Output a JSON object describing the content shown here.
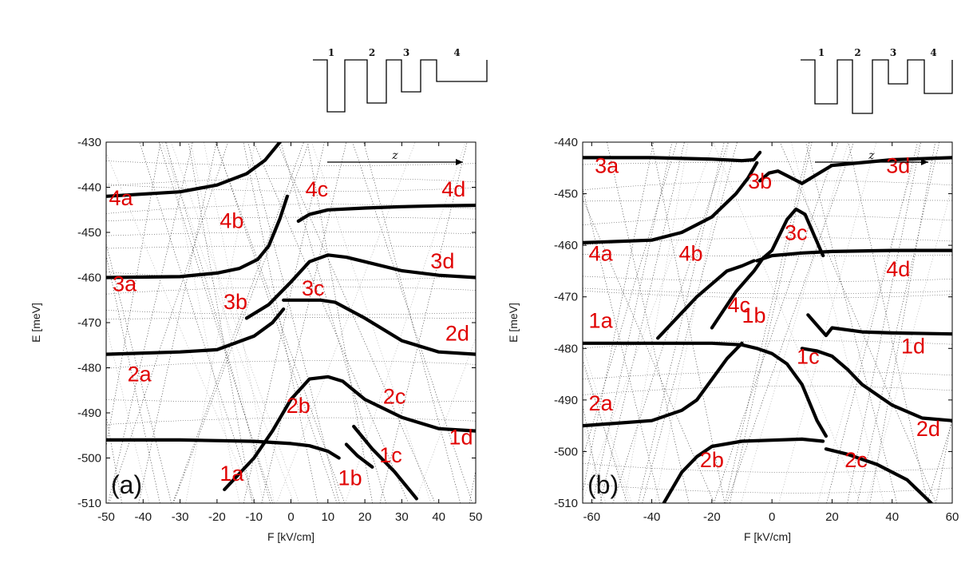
{
  "chart_data": [
    {
      "type": "line",
      "panel_label": "(a)",
      "xlabel": "F [kV/cm]",
      "ylabel": "E [meV]",
      "xlim": [
        -50,
        50
      ],
      "ylim": [
        -510,
        -430
      ],
      "xticks": [
        -50,
        -40,
        -30,
        -20,
        -10,
        0,
        10,
        20,
        30,
        40,
        50
      ],
      "yticks": [
        -430,
        -440,
        -450,
        -460,
        -470,
        -480,
        -490,
        -500,
        -510
      ],
      "well_numbers": [
        "1",
        "2",
        "3",
        "4"
      ],
      "axis_symbol": "z",
      "series": [
        {
          "x": [
            -50,
            -30,
            -20,
            -12,
            -7,
            -4,
            -2
          ],
          "y": [
            -442,
            -441,
            -439.5,
            -437,
            -434,
            -431,
            -429
          ]
        },
        {
          "x": [
            2,
            5,
            10,
            20,
            30,
            40,
            50
          ],
          "y": [
            -447.5,
            -446,
            -445,
            -444.6,
            -444.3,
            -444.1,
            -444
          ]
        },
        {
          "x": [
            -50,
            -30,
            -20,
            -14,
            -9,
            -6,
            -3,
            -1
          ],
          "y": [
            -460,
            -459.8,
            -459,
            -458,
            -456,
            -453,
            -447,
            -442
          ]
        },
        {
          "x": [
            -12,
            -6,
            0,
            5,
            10,
            15,
            20,
            30,
            40,
            50
          ],
          "y": [
            -469,
            -466,
            -461,
            -456.5,
            -455,
            -455.5,
            -456.5,
            -458.5,
            -459.5,
            -460
          ]
        },
        {
          "x": [
            -50,
            -30,
            -20,
            -10,
            -5,
            -2
          ],
          "y": [
            -477,
            -476.5,
            -476,
            -473,
            -470,
            -467
          ]
        },
        {
          "x": [
            -2,
            3,
            8,
            12,
            20,
            30,
            40,
            50
          ],
          "y": [
            -465,
            -465,
            -465,
            -465.5,
            -469,
            -474,
            -476.5,
            -477
          ]
        },
        {
          "x": [
            -18,
            -10,
            -5,
            0,
            5,
            10,
            14,
            20,
            30,
            40,
            50
          ],
          "y": [
            -507,
            -500,
            -494,
            -487,
            -482.5,
            -482,
            -483,
            -487,
            -491,
            -493.5,
            -494
          ]
        },
        {
          "x": [
            -50,
            -30,
            -10,
            0,
            5,
            10,
            13
          ],
          "y": [
            -496,
            -496,
            -496.3,
            -496.8,
            -497.3,
            -498.5,
            -500
          ]
        },
        {
          "x": [
            15,
            18,
            22
          ],
          "y": [
            -497,
            -499.5,
            -502
          ]
        },
        {
          "x": [
            17,
            22,
            28,
            34
          ],
          "y": [
            -493,
            -498,
            -503,
            -509
          ]
        }
      ],
      "annotations": [
        {
          "text": "4a",
          "x": -46,
          "y": -444
        },
        {
          "text": "4b",
          "x": -16,
          "y": -449
        },
        {
          "text": "4c",
          "x": 7,
          "y": -442
        },
        {
          "text": "4d",
          "x": 44,
          "y": -442
        },
        {
          "text": "3a",
          "x": -45,
          "y": -463
        },
        {
          "text": "3b",
          "x": -15,
          "y": -467
        },
        {
          "text": "3c",
          "x": 6,
          "y": -464
        },
        {
          "text": "3d",
          "x": 41,
          "y": -458
        },
        {
          "text": "2a",
          "x": -41,
          "y": -483
        },
        {
          "text": "2b",
          "x": 2,
          "y": -490
        },
        {
          "text": "2c",
          "x": 28,
          "y": -488
        },
        {
          "text": "2d",
          "x": 45,
          "y": -474
        },
        {
          "text": "1a",
          "x": -16,
          "y": -505
        },
        {
          "text": "1b",
          "x": 16,
          "y": -506
        },
        {
          "text": "1c",
          "x": 27,
          "y": -501
        },
        {
          "text": "1d",
          "x": 46,
          "y": -497
        }
      ]
    },
    {
      "type": "line",
      "panel_label": "(b)",
      "xlabel": "F [kV/cm]",
      "ylabel": "E [meV]",
      "xlim": [
        -63,
        60
      ],
      "ylim": [
        -510,
        -440
      ],
      "xticks": [
        -60,
        -40,
        -20,
        0,
        20,
        40,
        60
      ],
      "yticks": [
        -440,
        -450,
        -460,
        -470,
        -480,
        -490,
        -500,
        -510
      ],
      "well_numbers": [
        "1",
        "2",
        "3",
        "4"
      ],
      "axis_symbol": "z",
      "series": [
        {
          "x": [
            -63,
            -40,
            -20,
            -10,
            -6,
            -4
          ],
          "y": [
            -443,
            -443,
            -443.3,
            -443.6,
            -443.4,
            -442
          ]
        },
        {
          "x": [
            -4,
            -1,
            2,
            5,
            10,
            20,
            40,
            60
          ],
          "y": [
            -447.5,
            -446,
            -445.6,
            -446.5,
            -448,
            -444.5,
            -443.4,
            -443
          ]
        },
        {
          "x": [
            -63,
            -40,
            -30,
            -20,
            -12,
            -8,
            -5
          ],
          "y": [
            -459.5,
            -459,
            -457.5,
            -454.5,
            -450,
            -447,
            -444
          ]
        },
        {
          "x": [
            -20,
            -12,
            -6,
            -3,
            0,
            5,
            8,
            11,
            14,
            17
          ],
          "y": [
            -476,
            -469,
            -465,
            -462.5,
            -461,
            -455,
            -453,
            -454,
            -458,
            -462
          ]
        },
        {
          "x": [
            -5,
            0,
            10,
            20,
            40,
            60
          ],
          "y": [
            -463,
            -462,
            -461.5,
            -461.2,
            -461,
            -461
          ]
        },
        {
          "x": [
            -38,
            -25,
            -15,
            -10,
            -6
          ],
          "y": [
            -478,
            -470,
            -465,
            -464,
            -463
          ]
        },
        {
          "x": [
            -63,
            -40,
            -20,
            -10,
            -5,
            0,
            5,
            10,
            15,
            18
          ],
          "y": [
            -479,
            -479,
            -479,
            -479.3,
            -480,
            -481,
            -483,
            -487,
            -494,
            -497
          ]
        },
        {
          "x": [
            12,
            15,
            18,
            20,
            30,
            40,
            60
          ],
          "y": [
            -473.5,
            -475.5,
            -477.5,
            -476,
            -476.8,
            -477,
            -477.2
          ]
        },
        {
          "x": [
            -63,
            -40,
            -30,
            -25,
            -20,
            -15,
            -10
          ],
          "y": [
            -495,
            -494,
            -492,
            -490,
            -486,
            -482,
            -479
          ]
        },
        {
          "x": [
            10,
            15,
            20,
            25,
            30,
            40,
            50,
            60
          ],
          "y": [
            -480,
            -480.5,
            -481.5,
            -484,
            -487,
            -491,
            -493.5,
            -494
          ]
        },
        {
          "x": [
            -36,
            -30,
            -25,
            -20,
            -10,
            0,
            10,
            17
          ],
          "y": [
            -510,
            -504,
            -501,
            -499,
            -498,
            -497.8,
            -497.6,
            -498
          ]
        },
        {
          "x": [
            18,
            25,
            35,
            45,
            53
          ],
          "y": [
            -499.5,
            -500.5,
            -502.5,
            -505.5,
            -510
          ]
        }
      ],
      "annotations": [
        {
          "text": "3a",
          "x": -55,
          "y": -446
        },
        {
          "text": "3b",
          "x": -4,
          "y": -449
        },
        {
          "text": "3c",
          "x": 8,
          "y": -459
        },
        {
          "text": "3d",
          "x": 42,
          "y": -446
        },
        {
          "text": "4a",
          "x": -57,
          "y": -463
        },
        {
          "text": "4b",
          "x": -27,
          "y": -463
        },
        {
          "text": "4c",
          "x": -11,
          "y": -473
        },
        {
          "text": "4d",
          "x": 42,
          "y": -466
        },
        {
          "text": "1a",
          "x": -57,
          "y": -476
        },
        {
          "text": "1b",
          "x": -6,
          "y": -475
        },
        {
          "text": "1c",
          "x": 12,
          "y": -483
        },
        {
          "text": "1d",
          "x": 47,
          "y": -481
        },
        {
          "text": "2a",
          "x": -57,
          "y": -492
        },
        {
          "text": "2b",
          "x": -20,
          "y": -503
        },
        {
          "text": "2c",
          "x": 28,
          "y": -503
        },
        {
          "text": "2d",
          "x": 52,
          "y": -497
        }
      ]
    }
  ]
}
